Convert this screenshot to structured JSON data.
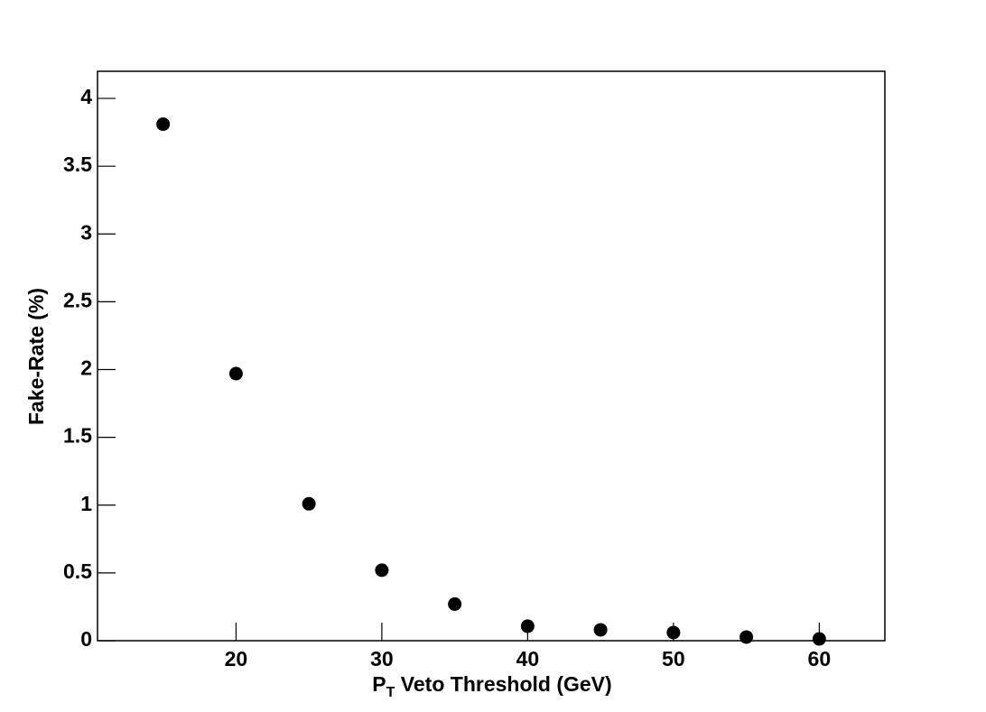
{
  "chart_data": {
    "type": "scatter",
    "x_label": [
      "P",
      "T",
      " Veto Threshold (GeV)"
    ],
    "y_label": "Fake-Rate (%)",
    "x": [
      15,
      20,
      25,
      30,
      35,
      40,
      45,
      50,
      55,
      60
    ],
    "y": [
      3.81,
      1.97,
      1.01,
      0.52,
      0.27,
      0.107,
      0.08,
      0.06,
      0.027,
      0.013
    ],
    "color": "#000000",
    "xlim": [
      10.5,
      64.5
    ],
    "xticks": [
      20,
      30,
      40,
      50,
      60
    ],
    "ylim": [
      0,
      4.2
    ],
    "yticks": [
      0,
      0.5,
      1,
      1.5,
      2,
      2.5,
      3,
      3.5,
      4
    ]
  }
}
